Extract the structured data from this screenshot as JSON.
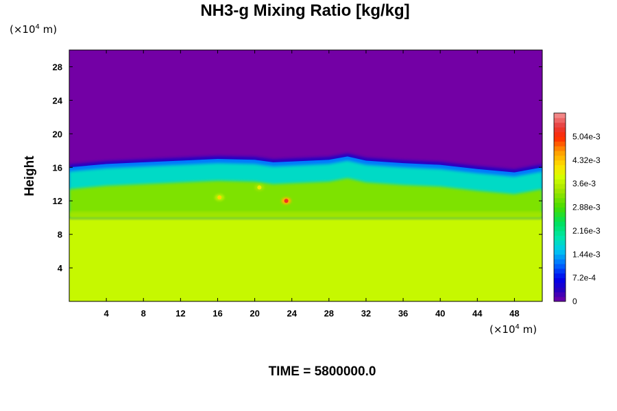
{
  "chart_data": {
    "type": "heatmap",
    "title": "NH3-g Mixing Ratio [kg/kg]",
    "xlabel": "",
    "ylabel": "Height",
    "x_unit_prefix": "(×10",
    "x_unit_exp": "4",
    "x_unit_suffix": " m)",
    "y_unit_prefix": "(×10",
    "y_unit_exp": "4",
    "y_unit_suffix": " m)",
    "xlim": [
      0,
      51
    ],
    "ylim": [
      0,
      30
    ],
    "x_ticks": [
      4,
      8,
      12,
      16,
      20,
      24,
      28,
      32,
      36,
      40,
      44,
      48
    ],
    "y_ticks": [
      4,
      8,
      12,
      16,
      20,
      24,
      28
    ],
    "colorbar": {
      "min": 0,
      "max": 0.00576,
      "tick_values": [
        0,
        0.00072,
        0.00144,
        0.00216,
        0.00288,
        0.0036,
        0.00432,
        0.00504
      ],
      "tick_labels": [
        "0",
        "7.2e-4",
        "1.44e-3",
        "2.16e-3",
        "2.88e-3",
        "3.6e-3",
        "4.32e-3",
        "5.04e-3"
      ],
      "levels": 40
    },
    "fields": {
      "lower_layer_value": 0.0037,
      "lower_layer_top": 10,
      "upper_layer_value": 0,
      "mixed_layer_top": [
        [
          0,
          16.0
        ],
        [
          4,
          16.4
        ],
        [
          8,
          16.6
        ],
        [
          12,
          16.8
        ],
        [
          16,
          17.0
        ],
        [
          20,
          16.9
        ],
        [
          22,
          16.6
        ],
        [
          24,
          16.7
        ],
        [
          28,
          16.9
        ],
        [
          30,
          17.3
        ],
        [
          32,
          16.8
        ],
        [
          36,
          16.5
        ],
        [
          40,
          16.3
        ],
        [
          44,
          15.8
        ],
        [
          48,
          15.4
        ],
        [
          51,
          16.0
        ]
      ],
      "mixed_layer_value_range": [
        0.0018,
        0.0032
      ],
      "hotspots": [
        {
          "x": 23.4,
          "y": 12.0,
          "value": 0.0052
        },
        {
          "x": 16.2,
          "y": 12.4,
          "value": 0.0042
        },
        {
          "x": 20.5,
          "y": 13.6,
          "value": 0.004
        }
      ]
    }
  },
  "time_label": "TIME = 5800000.0"
}
